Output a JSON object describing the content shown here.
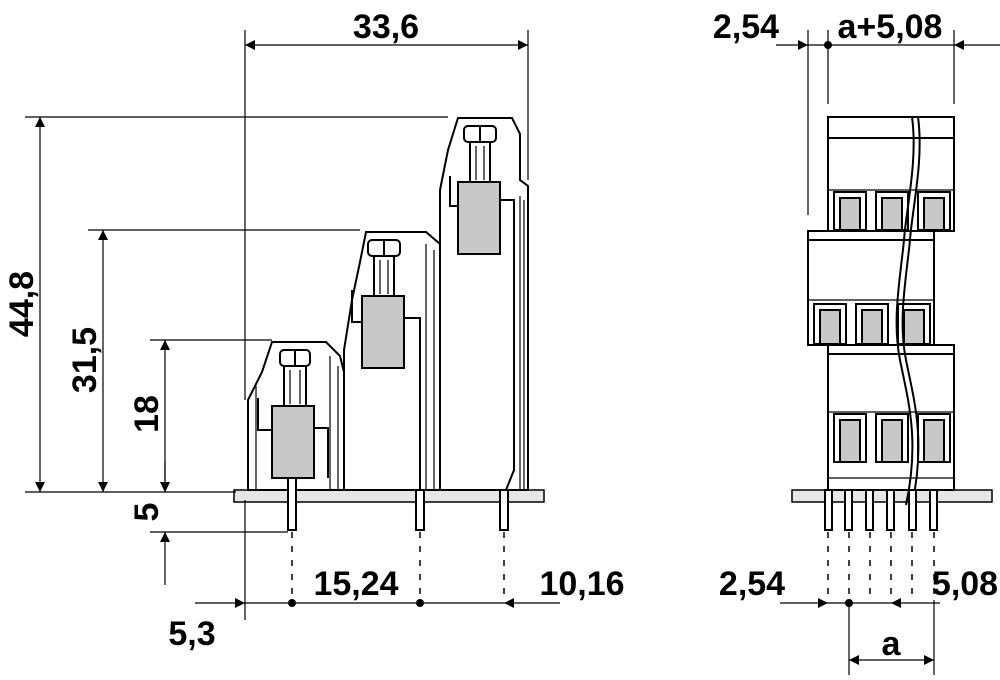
{
  "side_view": {
    "dimensions": {
      "total_width": "33,6",
      "total_height": "44,8",
      "mid_height": "31,5",
      "low_height": "18",
      "pin_length": "5",
      "pitch_left": "15,24",
      "pitch_right": "10,16",
      "offset_left": "5,3"
    }
  },
  "front_view": {
    "dimensions": {
      "top_offset": "2,54",
      "top_width": "a+5,08",
      "bottom_offset": "2,54",
      "bottom_pitch": "5,08",
      "pitch_a": "a"
    }
  }
}
